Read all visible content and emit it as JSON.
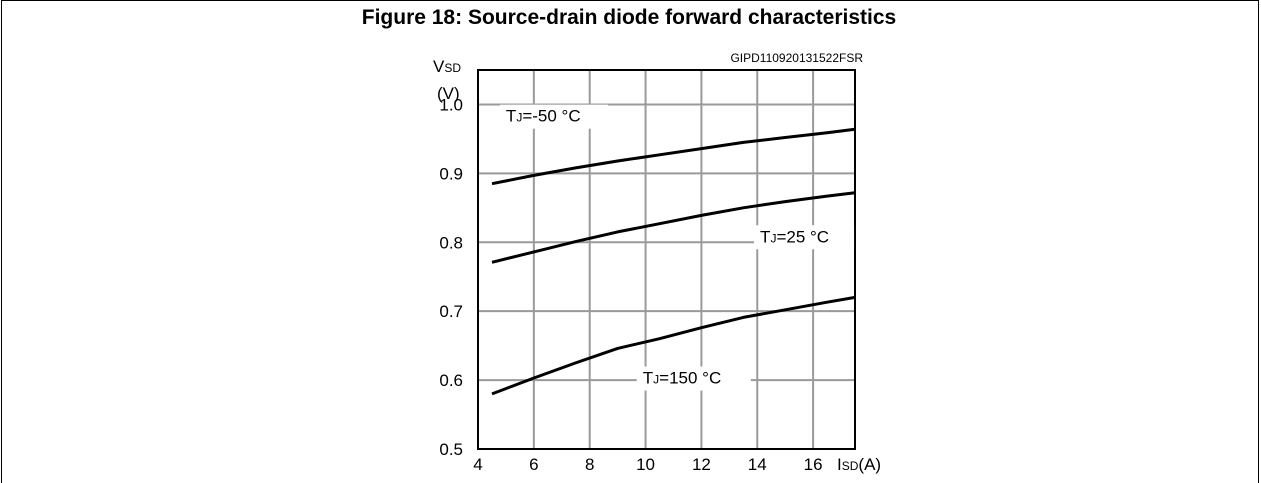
{
  "figure_title": "Figure 18: Source-drain diode forward characteristics",
  "chart_data": {
    "type": "line",
    "title": "Figure 18: Source-drain diode forward characteristics",
    "code": "GIPD110920131522FSR",
    "ylabel": {
      "main": "V",
      "sub": "SD",
      "unit": "(V)"
    },
    "xlabel": {
      "main": "I",
      "sub": "SD",
      "unit": "(A)"
    },
    "xlim": [
      4,
      17.5
    ],
    "ylim": [
      0.5,
      1.05
    ],
    "xticks": [
      4,
      6,
      8,
      10,
      12,
      14,
      16
    ],
    "xtick_labels": [
      "4",
      "6",
      "8",
      "10",
      "12",
      "14",
      "16"
    ],
    "yticks": [
      0.5,
      0.6,
      0.7,
      0.8,
      0.9,
      1.0
    ],
    "ytick_labels": [
      "0.5",
      "0.6",
      "0.7",
      "0.8",
      "0.9",
      "1.0"
    ],
    "grid": true,
    "series": [
      {
        "name": "TJ=-50 °C",
        "label_main": "T",
        "label_sub": "J",
        "label_rest": "=-50 °C",
        "x": [
          4.5,
          6,
          7.5,
          9,
          10.5,
          12,
          13.5,
          15,
          16.5,
          17.5
        ],
        "y": [
          0.885,
          0.897,
          0.908,
          0.918,
          0.927,
          0.936,
          0.945,
          0.952,
          0.959,
          0.964
        ]
      },
      {
        "name": "TJ=25 °C",
        "label_main": "T",
        "label_sub": "J",
        "label_rest": "=25 °C",
        "x": [
          4.5,
          6,
          7.5,
          9,
          10.5,
          12,
          13.5,
          15,
          16.5,
          17.5
        ],
        "y": [
          0.771,
          0.786,
          0.801,
          0.815,
          0.827,
          0.839,
          0.85,
          0.859,
          0.867,
          0.872
        ]
      },
      {
        "name": "TJ=150 °C",
        "label_main": "T",
        "label_sub": "J",
        "label_rest": "=150 °C",
        "x": [
          4.5,
          6,
          7.5,
          9,
          10.5,
          12,
          13.5,
          15,
          16.5,
          17.5
        ],
        "y": [
          0.58,
          0.603,
          0.625,
          0.646,
          0.66,
          0.676,
          0.691,
          0.702,
          0.713,
          0.72
        ]
      }
    ]
  }
}
